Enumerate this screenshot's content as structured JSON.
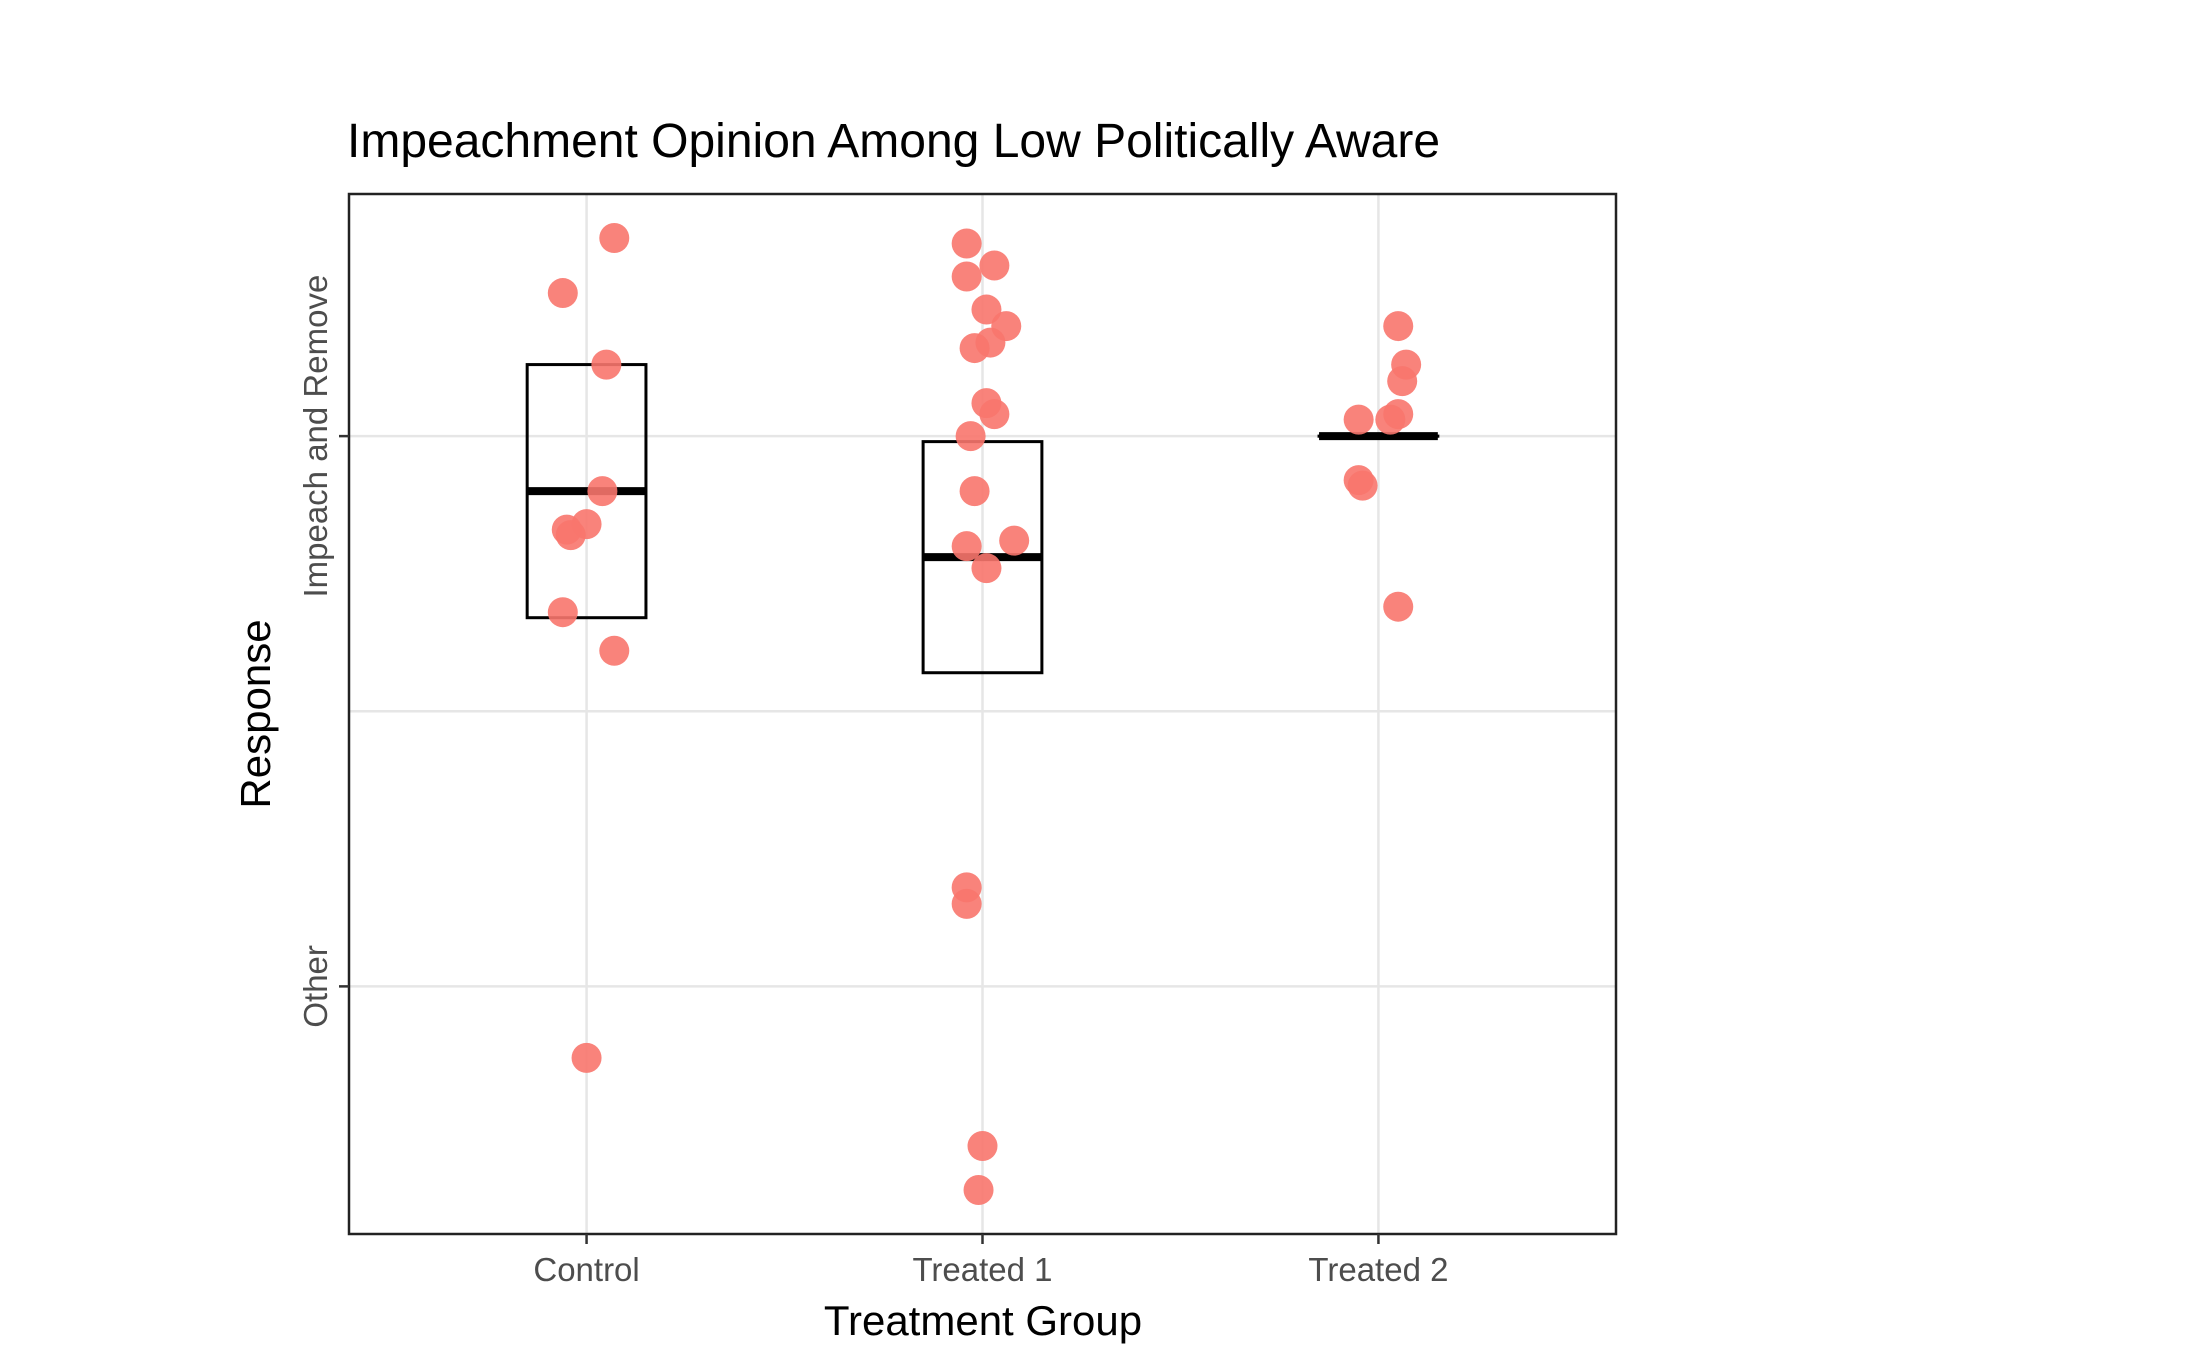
{
  "chart_data": {
    "type": "scatter",
    "title": "Impeachment Opinion Among Low Politically Aware",
    "xlabel": "Treatment Group",
    "ylabel": "Response",
    "categories": [
      "Control",
      "Treated 1",
      "Treated 2"
    ],
    "y_levels": [
      "Other",
      "Impeach and Remove"
    ],
    "ylim": [
      0.55,
      2.44
    ],
    "grid": true,
    "colors": {
      "points": "#f8766d",
      "boxes": "#000000"
    },
    "overlay": "boxplot",
    "points": [
      {
        "group": "Control",
        "x": 1.07,
        "y": 2.36
      },
      {
        "group": "Control",
        "x": 0.94,
        "y": 2.26
      },
      {
        "group": "Control",
        "x": 1.05,
        "y": 2.13
      },
      {
        "group": "Control",
        "x": 1.04,
        "y": 1.9
      },
      {
        "group": "Control",
        "x": 1.0,
        "y": 1.84
      },
      {
        "group": "Control",
        "x": 0.95,
        "y": 1.83
      },
      {
        "group": "Control",
        "x": 0.96,
        "y": 1.82
      },
      {
        "group": "Control",
        "x": 0.94,
        "y": 1.68
      },
      {
        "group": "Control",
        "x": 1.07,
        "y": 1.61
      },
      {
        "group": "Control",
        "x": 1.0,
        "y": 0.87
      },
      {
        "group": "Treated 1",
        "x": 1.96,
        "y": 2.35
      },
      {
        "group": "Treated 1",
        "x": 2.03,
        "y": 2.31
      },
      {
        "group": "Treated 1",
        "x": 1.96,
        "y": 2.29
      },
      {
        "group": "Treated 1",
        "x": 2.01,
        "y": 2.23
      },
      {
        "group": "Treated 1",
        "x": 2.06,
        "y": 2.2
      },
      {
        "group": "Treated 1",
        "x": 2.02,
        "y": 2.17
      },
      {
        "group": "Treated 1",
        "x": 1.98,
        "y": 2.16
      },
      {
        "group": "Treated 1",
        "x": 2.01,
        "y": 2.06
      },
      {
        "group": "Treated 1",
        "x": 2.03,
        "y": 2.04
      },
      {
        "group": "Treated 1",
        "x": 1.97,
        "y": 2.0
      },
      {
        "group": "Treated 1",
        "x": 1.98,
        "y": 1.9
      },
      {
        "group": "Treated 1",
        "x": 1.96,
        "y": 1.8
      },
      {
        "group": "Treated 1",
        "x": 2.08,
        "y": 1.81
      },
      {
        "group": "Treated 1",
        "x": 2.01,
        "y": 1.76
      },
      {
        "group": "Treated 1",
        "x": 1.96,
        "y": 1.18
      },
      {
        "group": "Treated 1",
        "x": 1.96,
        "y": 1.15
      },
      {
        "group": "Treated 1",
        "x": 2.0,
        "y": 0.71
      },
      {
        "group": "Treated 1",
        "x": 1.99,
        "y": 0.63
      },
      {
        "group": "Treated 2",
        "x": 3.05,
        "y": 2.2
      },
      {
        "group": "Treated 2",
        "x": 3.07,
        "y": 2.13
      },
      {
        "group": "Treated 2",
        "x": 3.06,
        "y": 2.1
      },
      {
        "group": "Treated 2",
        "x": 2.95,
        "y": 2.03
      },
      {
        "group": "Treated 2",
        "x": 3.05,
        "y": 2.04
      },
      {
        "group": "Treated 2",
        "x": 3.03,
        "y": 2.03
      },
      {
        "group": "Treated 2",
        "x": 2.95,
        "y": 1.92
      },
      {
        "group": "Treated 2",
        "x": 2.96,
        "y": 1.91
      },
      {
        "group": "Treated 2",
        "x": 3.05,
        "y": 1.69
      }
    ],
    "boxes": [
      {
        "group": "Control",
        "x": 1,
        "q1": 1.67,
        "median": 1.9,
        "q3": 2.13
      },
      {
        "group": "Treated 1",
        "x": 2,
        "q1": 1.57,
        "median": 1.78,
        "q3": 1.99
      },
      {
        "group": "Treated 2",
        "x": 3,
        "q1": 2.0,
        "median": 2.0,
        "q3": 2.0
      }
    ]
  }
}
